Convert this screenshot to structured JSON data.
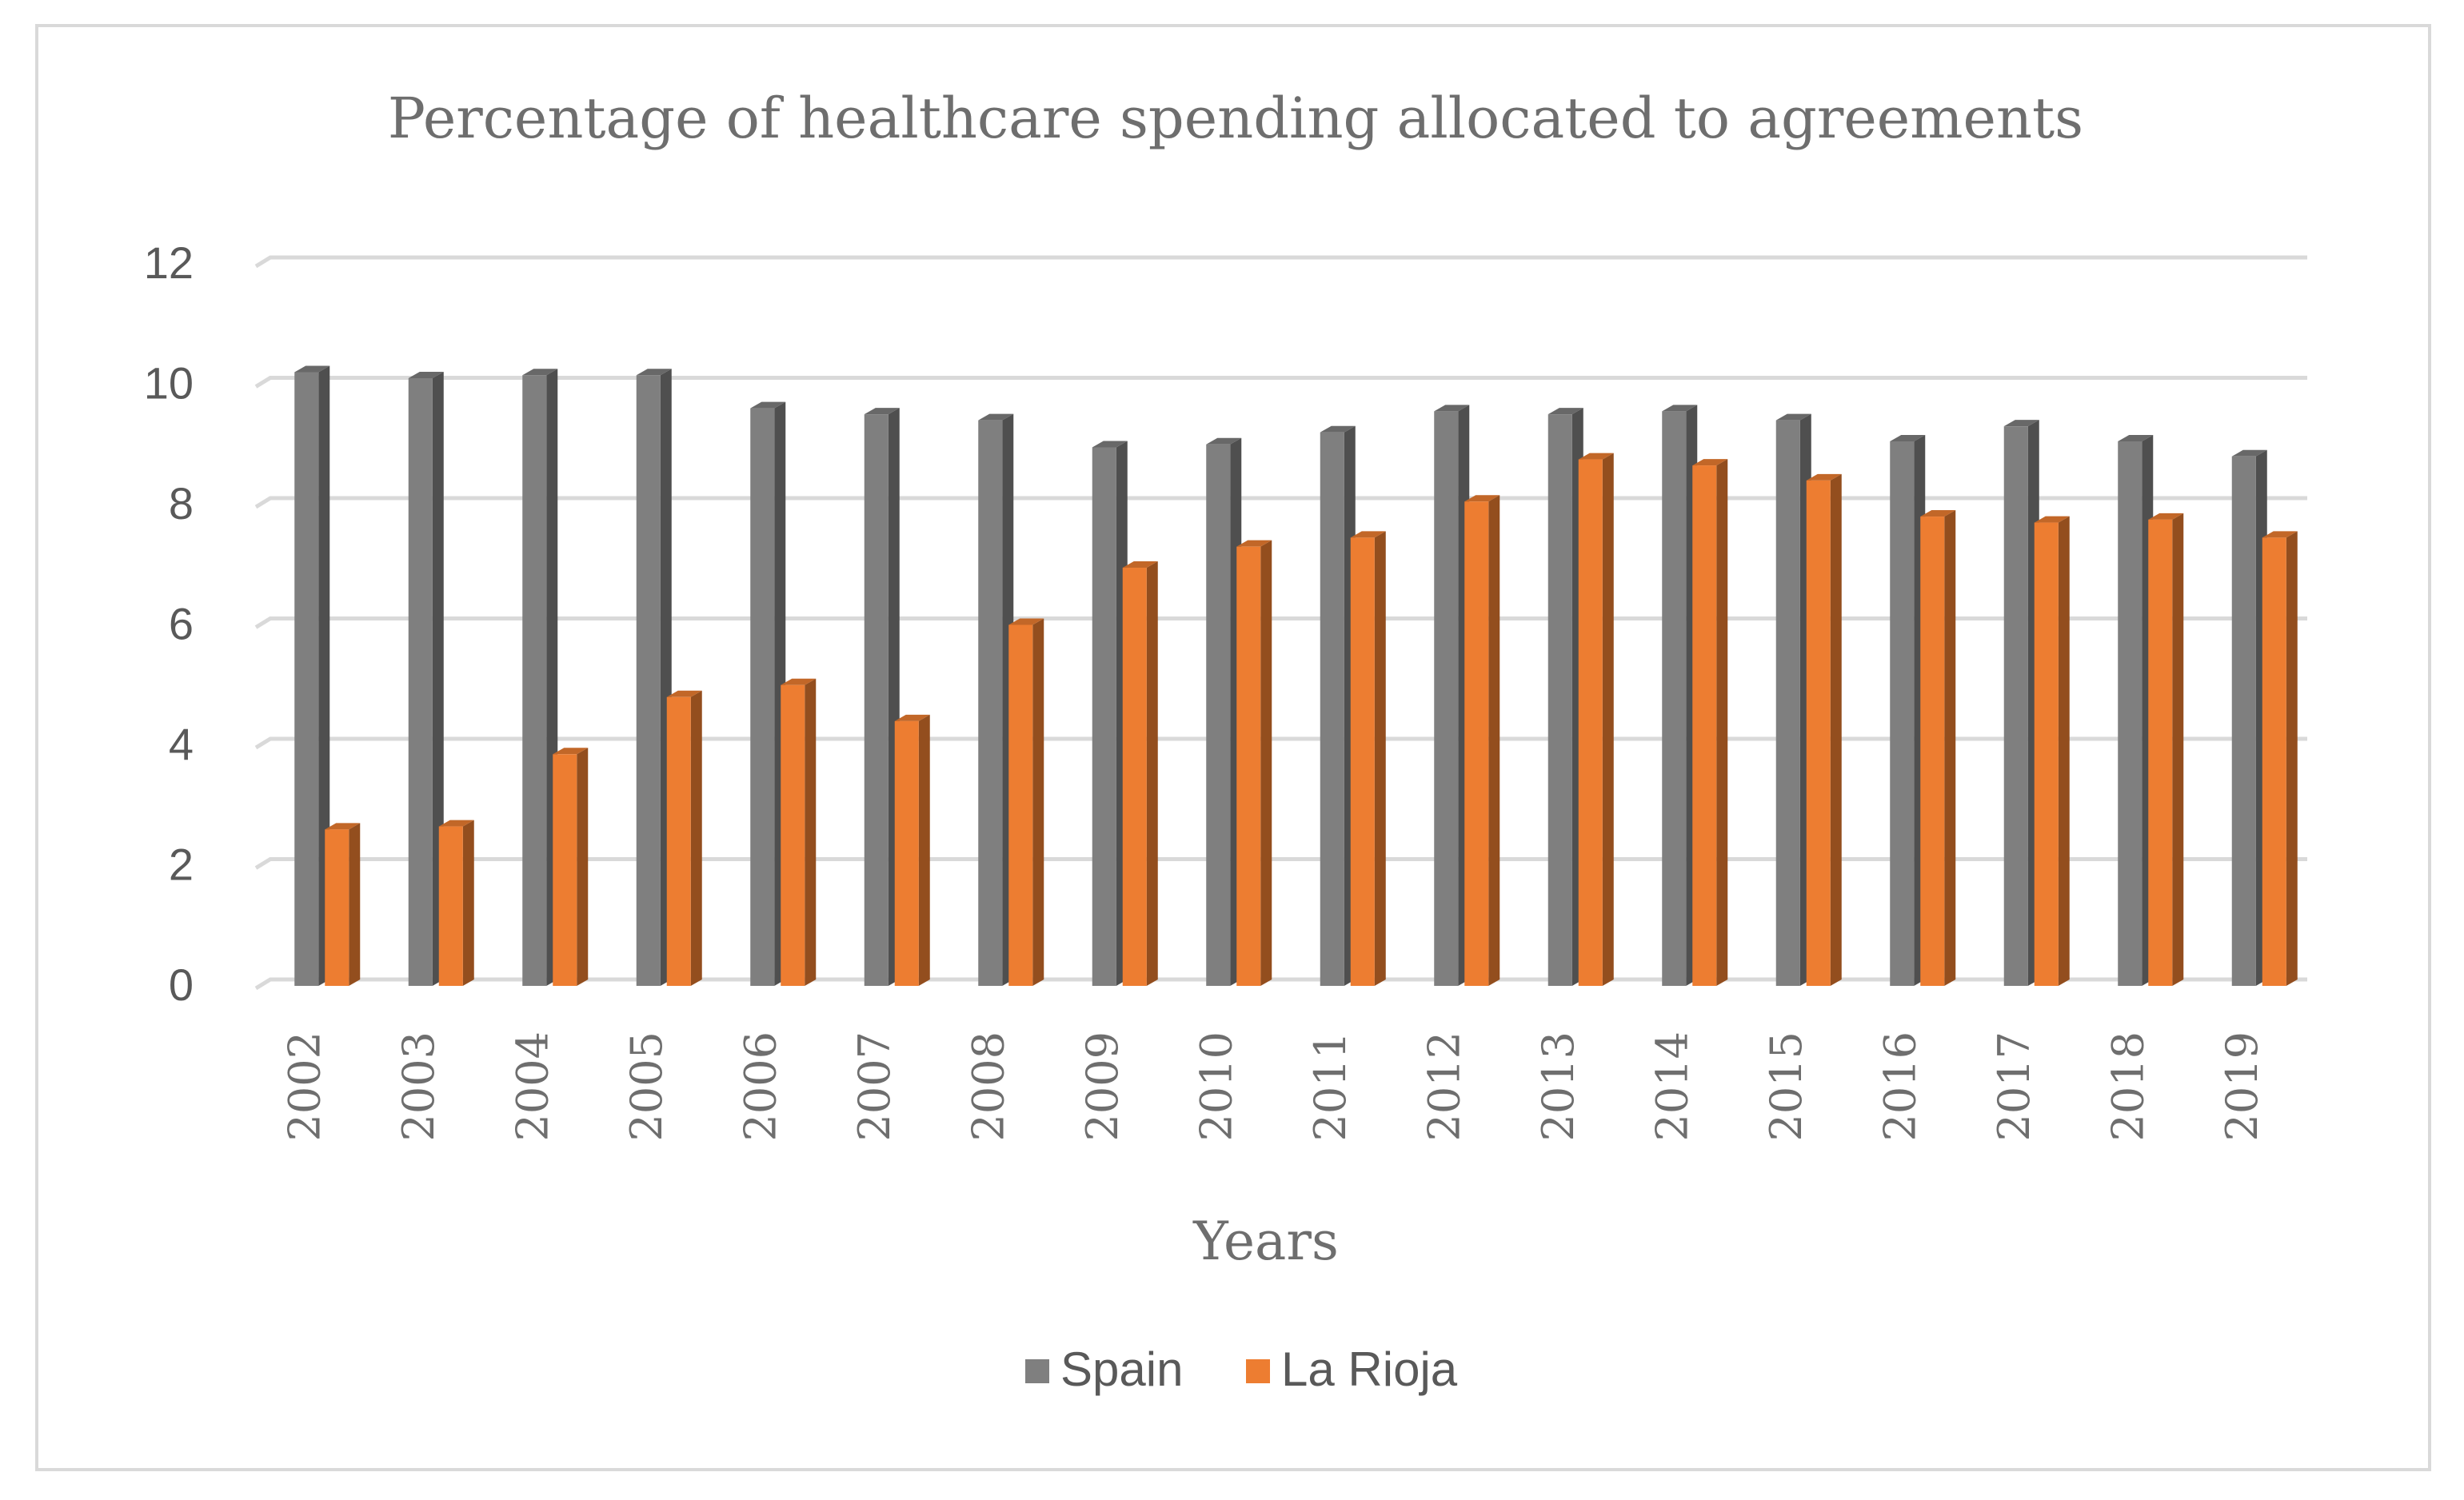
{
  "chart_data": {
    "type": "bar",
    "title": "Percentage of healthcare spending allocated to agreements",
    "xlabel": "Years",
    "ylabel": "",
    "ylim": [
      0,
      12
    ],
    "yticks": [
      0,
      2,
      4,
      6,
      8,
      10,
      12
    ],
    "grid": true,
    "legend_position": "bottom",
    "categories": [
      "2002",
      "2003",
      "2004",
      "2005",
      "2006",
      "2007",
      "2008",
      "2009",
      "2010",
      "2011",
      "2012",
      "2013",
      "2014",
      "2015",
      "2016",
      "2017",
      "2018",
      "2019"
    ],
    "series": [
      {
        "name": "Spain",
        "color": "#7f7f7f",
        "values": [
          10.2,
          10.1,
          10.15,
          10.15,
          9.6,
          9.5,
          9.4,
          8.95,
          9.0,
          9.2,
          9.55,
          9.5,
          9.55,
          9.4,
          9.05,
          9.3,
          9.05,
          8.8
        ]
      },
      {
        "name": "La Rioja",
        "color": "#ed7d31",
        "values": [
          2.6,
          2.65,
          3.85,
          4.8,
          5.0,
          4.4,
          6.0,
          6.95,
          7.3,
          7.45,
          8.05,
          8.75,
          8.65,
          8.4,
          7.8,
          7.7,
          7.75,
          7.45
        ]
      }
    ]
  }
}
